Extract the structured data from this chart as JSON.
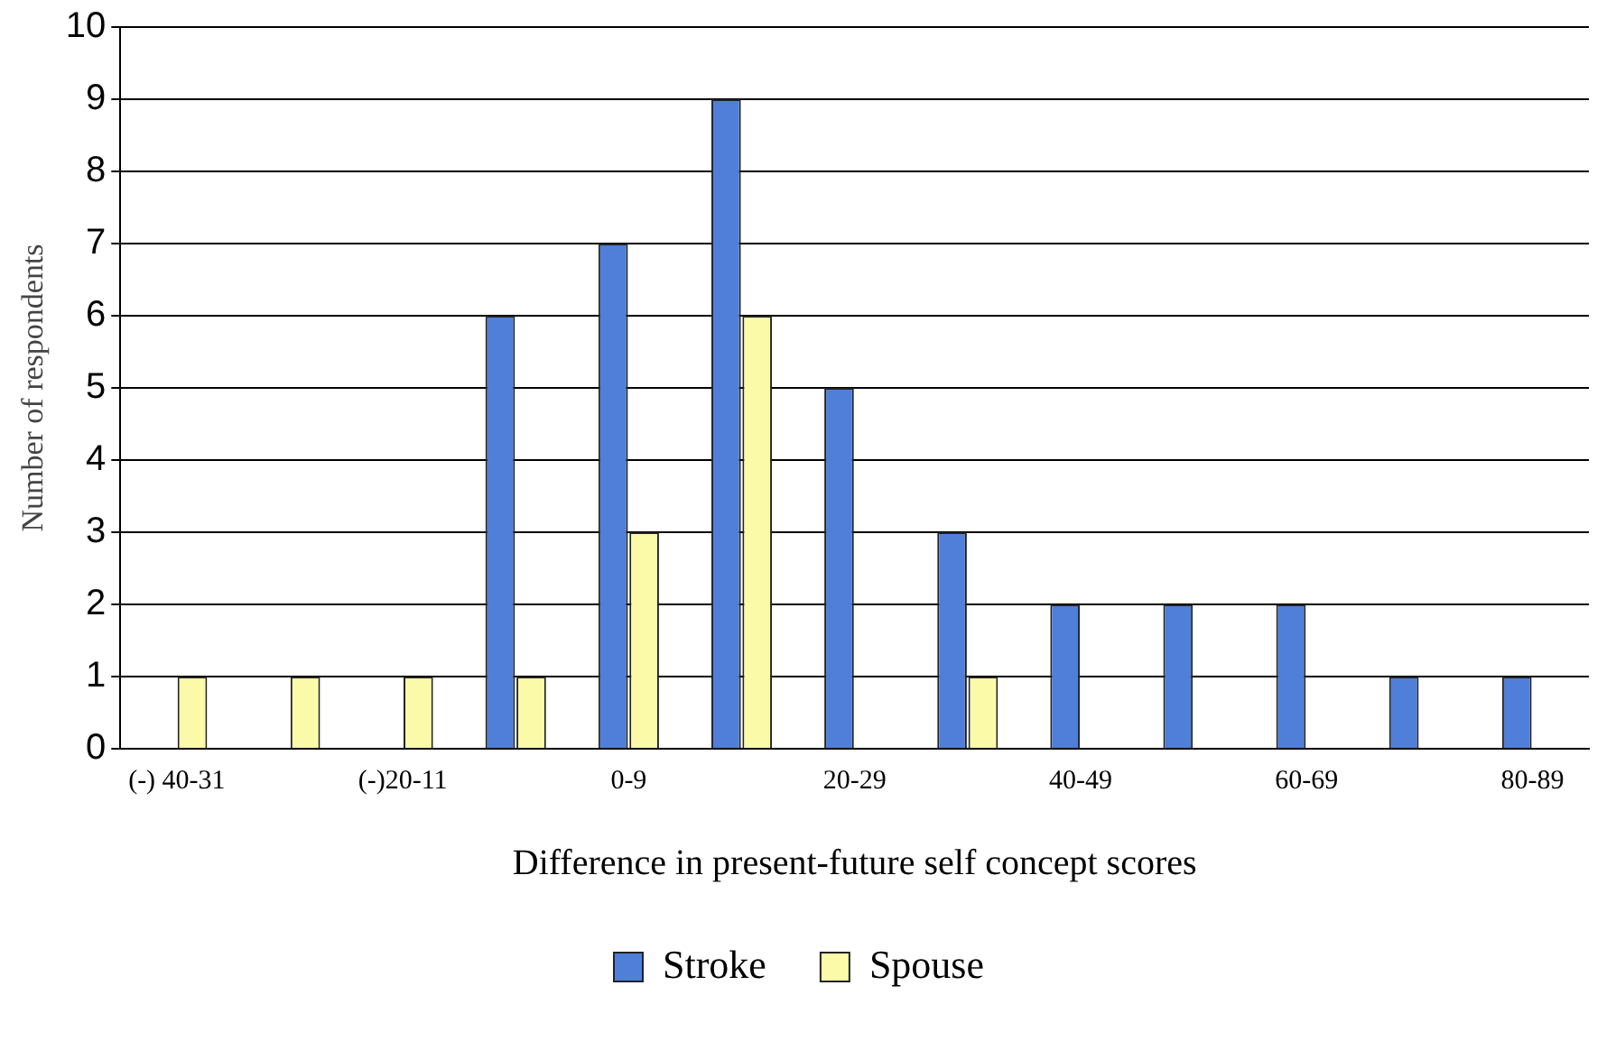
{
  "chart_data": {
    "type": "bar",
    "xlabel": "Difference in present-future self concept scores",
    "ylabel": "Number of respondents",
    "categories": [
      "(-) 40-31",
      null,
      "(-)20-11",
      null,
      "0-9",
      null,
      "20-29",
      null,
      "40-49",
      null,
      "60-69",
      null,
      "80-89"
    ],
    "series": [
      {
        "name": "Stroke",
        "color": "#4f7fd8",
        "values": [
          0,
          0,
          0,
          6,
          7,
          9,
          5,
          3,
          2,
          2,
          2,
          1,
          1
        ]
      },
      {
        "name": "Spouse",
        "color": "#fbfaa8",
        "values": [
          1,
          1,
          1,
          1,
          3,
          6,
          0,
          1,
          0,
          0,
          0,
          0,
          0
        ]
      }
    ],
    "ylim": [
      0,
      10
    ],
    "yticks": [
      0,
      1,
      2,
      3,
      4,
      5,
      6,
      7,
      8,
      9,
      10
    ],
    "grid": "y",
    "legend": "bottom"
  }
}
